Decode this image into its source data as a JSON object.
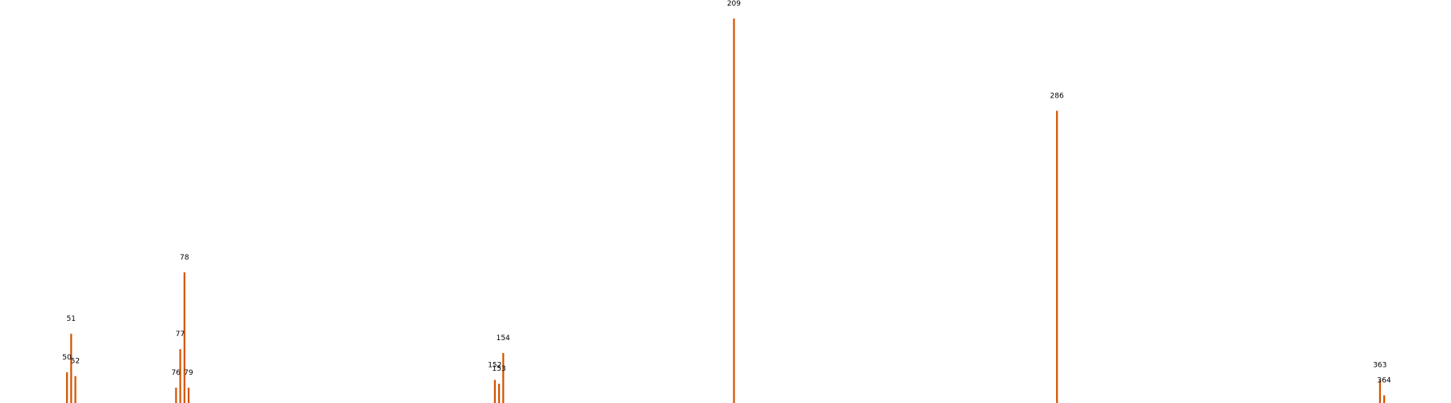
{
  "chart_data": {
    "type": "bar",
    "title": "",
    "xlabel": "",
    "ylabel": "",
    "grid": false,
    "legend": "none",
    "bar_color": "#d35400",
    "x": [
      50,
      51,
      52,
      76,
      77,
      78,
      79,
      152,
      153,
      154,
      209,
      286,
      363,
      364
    ],
    "values": [
      8,
      18,
      7,
      4,
      14,
      34,
      4,
      6,
      5,
      13,
      100,
      76,
      6,
      2
    ],
    "labels": [
      "50",
      "51",
      "52",
      "76",
      "77",
      "78",
      "79",
      "152",
      "153",
      "154",
      "209",
      "286",
      "363",
      "364"
    ],
    "xlim": [
      35,
      370
    ],
    "ylim": [
      0,
      100
    ]
  }
}
